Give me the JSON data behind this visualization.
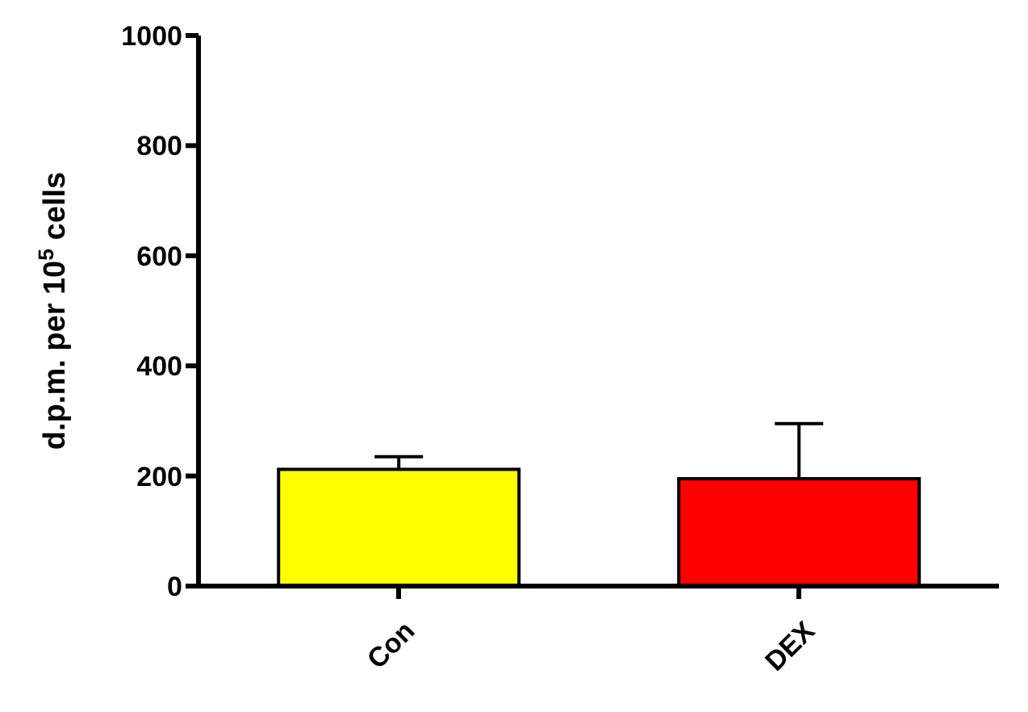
{
  "chart_data": {
    "type": "bar",
    "ylabel": "d.p.m. per 10$^{5}$ cells",
    "categories": [
      "Con",
      "DEX"
    ],
    "values": [
      212,
      195
    ],
    "colors": [
      "#ffff00",
      "#ff0000"
    ],
    "errors": [
      [
        212,
        235
      ],
      [
        195,
        295
      ]
    ],
    "ylim": [
      0,
      1000
    ],
    "yticks": [
      0,
      200,
      400,
      600,
      800,
      1000
    ]
  }
}
